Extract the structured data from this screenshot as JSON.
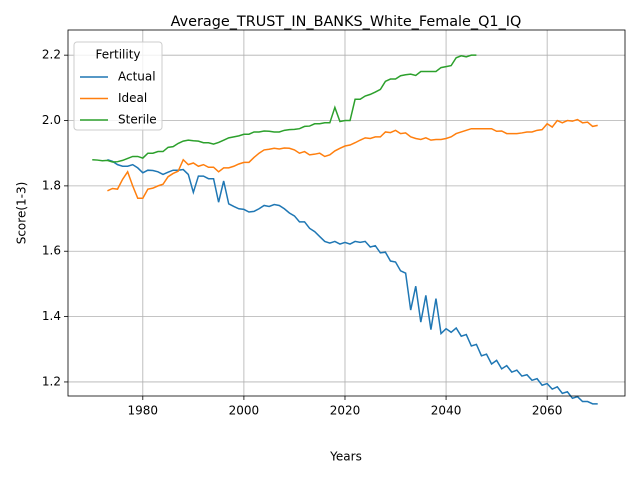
{
  "chart_data": {
    "type": "line",
    "title": "Average_TRUST_IN_BANKS_White_Female_Q1_IQ",
    "x_label": "Years",
    "y_label": "Score(1-3)",
    "legend_title": "Fertility",
    "legend": "upper left",
    "grid": true,
    "xlim": [
      1965.2,
      2075.4
    ],
    "ylim": [
      1.157,
      2.277
    ],
    "xticks": [
      1980,
      2000,
      2020,
      2040,
      2060
    ],
    "yticks": [
      1.2,
      1.4,
      1.6,
      1.8,
      {
        "value": 2,
        "label": "2.0"
      },
      2.2
    ],
    "x": [
      1970,
      1971,
      1972,
      1973,
      1974,
      1975,
      1976,
      1977,
      1978,
      1979,
      1980,
      1981,
      1982,
      1983,
      1984,
      1985,
      1986,
      1987,
      1988,
      1989,
      1990,
      1991,
      1992,
      1993,
      1994,
      1995,
      1996,
      1997,
      1998,
      1999,
      2000,
      2001,
      2002,
      2003,
      2004,
      2005,
      2006,
      2007,
      2008,
      2009,
      2010,
      2011,
      2012,
      2013,
      2014,
      2015,
      2016,
      2017,
      2018,
      2019,
      2020,
      2021,
      2022,
      2023,
      2024,
      2025,
      2026,
      2027,
      2028,
      2029,
      2030,
      2031,
      2032,
      2033,
      2034,
      2035,
      2036,
      2037,
      2038,
      2039,
      2040,
      2041,
      2042,
      2043,
      2044,
      2045,
      2046,
      2047,
      2048,
      2049,
      2050,
      2051,
      2052,
      2053,
      2054,
      2055,
      2056,
      2057,
      2058,
      2059,
      2060,
      2061,
      2062,
      2063,
      2064,
      2065,
      2066,
      2067,
      2068,
      2069,
      2070
    ],
    "series": [
      {
        "name": "Actual",
        "color": "#1f77b4",
        "values": [
          null,
          null,
          null,
          1.88,
          1.875,
          1.865,
          1.86,
          1.86,
          1.865,
          1.855,
          1.84,
          1.848,
          1.847,
          1.843,
          1.835,
          1.842,
          1.848,
          1.848,
          1.85,
          1.835,
          1.78,
          1.83,
          1.83,
          1.822,
          1.822,
          1.75,
          1.815,
          1.745,
          1.737,
          1.73,
          1.728,
          1.72,
          1.722,
          1.73,
          1.74,
          1.737,
          1.743,
          1.74,
          1.73,
          1.717,
          1.708,
          1.69,
          1.69,
          1.67,
          1.66,
          1.645,
          1.63,
          1.625,
          1.63,
          1.622,
          1.627,
          1.622,
          1.63,
          1.627,
          1.63,
          1.613,
          1.617,
          1.595,
          1.597,
          1.57,
          1.567,
          1.54,
          1.533,
          1.42,
          1.493,
          1.383,
          1.465,
          1.36,
          1.455,
          1.348,
          1.363,
          1.352,
          1.365,
          1.34,
          1.345,
          1.31,
          1.315,
          1.28,
          1.285,
          1.255,
          1.266,
          1.24,
          1.25,
          1.23,
          1.236,
          1.218,
          1.222,
          1.205,
          1.21,
          1.19,
          1.195,
          1.178,
          1.185,
          1.165,
          1.17,
          1.15,
          1.155,
          1.14,
          1.14,
          1.133,
          1.133
        ]
      },
      {
        "name": "Ideal",
        "color": "#ff7f0e",
        "values": [
          null,
          null,
          null,
          1.785,
          1.792,
          1.79,
          1.82,
          1.843,
          1.8,
          1.762,
          1.762,
          1.79,
          1.793,
          1.8,
          1.805,
          1.828,
          1.838,
          1.845,
          1.88,
          1.865,
          1.87,
          1.86,
          1.865,
          1.857,
          1.857,
          1.843,
          1.855,
          1.855,
          1.86,
          1.867,
          1.872,
          1.872,
          1.887,
          1.9,
          1.91,
          1.912,
          1.915,
          1.913,
          1.916,
          1.915,
          1.91,
          1.9,
          1.905,
          1.895,
          1.897,
          1.9,
          1.89,
          1.895,
          1.907,
          1.915,
          1.922,
          1.925,
          1.932,
          1.94,
          1.947,
          1.945,
          1.95,
          1.95,
          1.965,
          1.963,
          1.97,
          1.96,
          1.962,
          1.95,
          1.945,
          1.942,
          1.947,
          1.94,
          1.942,
          1.942,
          1.945,
          1.95,
          1.96,
          1.965,
          1.97,
          1.975,
          1.975,
          1.975,
          1.975,
          1.975,
          1.967,
          1.968,
          1.96,
          1.96,
          1.96,
          1.962,
          1.965,
          1.965,
          1.97,
          1.972,
          1.99,
          1.98,
          2.0,
          1.993,
          2.0,
          1.998,
          2.003,
          1.993,
          1.995,
          1.982,
          1.985
        ]
      },
      {
        "name": "Sterile",
        "color": "#2ca02c",
        "values": [
          1.88,
          1.879,
          1.877,
          1.878,
          1.873,
          1.874,
          1.878,
          1.884,
          1.89,
          1.89,
          1.885,
          1.9,
          1.9,
          1.905,
          1.905,
          1.918,
          1.92,
          1.93,
          1.937,
          1.94,
          1.938,
          1.937,
          1.932,
          1.932,
          1.928,
          1.933,
          1.94,
          1.947,
          1.95,
          1.953,
          1.958,
          1.958,
          1.965,
          1.965,
          1.968,
          1.967,
          1.965,
          1.965,
          1.97,
          1.972,
          1.973,
          1.975,
          1.982,
          1.983,
          1.99,
          1.99,
          1.993,
          1.993,
          2.04,
          1.997,
          2.0,
          2.0,
          2.065,
          2.065,
          2.075,
          2.08,
          2.087,
          2.095,
          2.12,
          2.127,
          2.127,
          2.137,
          2.14,
          2.142,
          2.138,
          2.15,
          2.15,
          2.15,
          2.15,
          2.162,
          2.165,
          2.168,
          2.192,
          2.198,
          2.195,
          2.2,
          2.2,
          null,
          null,
          null,
          null,
          null,
          null,
          null,
          null,
          null,
          null,
          null,
          null,
          null,
          null,
          null,
          null,
          null,
          null,
          null,
          null,
          null,
          null,
          null,
          null
        ]
      }
    ]
  }
}
